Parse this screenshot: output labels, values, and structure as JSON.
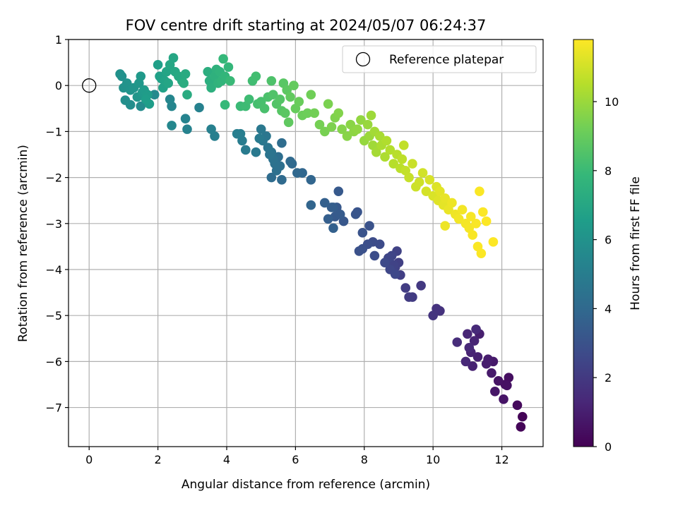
{
  "chart_data": {
    "type": "scatter",
    "title": "FOV centre drift starting at 2024/05/07 06:24:37",
    "xlabel": "Angular distance from reference (arcmin)",
    "ylabel": "Rotation from reference (arcmin)",
    "xlim": [
      -0.6,
      13.2
    ],
    "ylim": [
      -7.85,
      1.0
    ],
    "xticks": [
      0,
      2,
      4,
      6,
      8,
      10,
      12
    ],
    "yticks": [
      1,
      0,
      -1,
      -2,
      -3,
      -4,
      -5,
      -6,
      -7
    ],
    "grid": true,
    "legend": {
      "placement": "top-right",
      "entries": [
        "Reference platepar"
      ]
    },
    "reference_point": {
      "x": 0,
      "y": 0,
      "marker": "hollow-circle"
    },
    "colorbar": {
      "label": "Hours from first FF file",
      "colormap": "viridis",
      "range": [
        0,
        11.8
      ],
      "ticks": [
        0,
        2,
        4,
        6,
        8,
        10
      ]
    },
    "colormap_stops": [
      "#440154",
      "#482878",
      "#3e4989",
      "#31688e",
      "#26828e",
      "#1f9e89",
      "#35b779",
      "#6ece58",
      "#b5de2b",
      "#fde725"
    ],
    "series": [
      {
        "description_color": "colour = hours from first FF file",
        "points": [
          [
            12.6,
            -7.2,
            0.1
          ],
          [
            12.55,
            -7.42,
            0.15
          ],
          [
            12.45,
            -6.95,
            0.3
          ],
          [
            12.2,
            -6.35,
            0.45
          ],
          [
            12.1,
            -6.5,
            0.5
          ],
          [
            12.15,
            -6.52,
            0.55
          ],
          [
            11.9,
            -6.42,
            0.6
          ],
          [
            12.05,
            -6.82,
            0.65
          ],
          [
            11.8,
            -6.65,
            0.7
          ],
          [
            11.75,
            -6.0,
            0.8
          ],
          [
            11.7,
            -6.25,
            0.85
          ],
          [
            11.6,
            -5.95,
            0.9
          ],
          [
            11.55,
            -6.05,
            0.95
          ],
          [
            11.35,
            -5.4,
            1.0
          ],
          [
            11.3,
            -5.9,
            1.05
          ],
          [
            11.15,
            -6.1,
            1.1
          ],
          [
            11.1,
            -5.8,
            1.15
          ],
          [
            11.2,
            -5.55,
            1.2
          ],
          [
            11.0,
            -5.4,
            1.25
          ],
          [
            10.95,
            -6.0,
            1.3
          ],
          [
            11.05,
            -5.7,
            1.35
          ],
          [
            11.25,
            -5.3,
            1.4
          ],
          [
            10.7,
            -5.58,
            1.5
          ],
          [
            10.2,
            -4.9,
            1.7
          ],
          [
            10.1,
            -4.85,
            1.75
          ],
          [
            10.0,
            -5.0,
            1.8
          ],
          [
            9.65,
            -4.35,
            2.0
          ],
          [
            9.4,
            -4.6,
            2.05
          ],
          [
            9.3,
            -4.6,
            2.1
          ],
          [
            9.2,
            -4.4,
            2.15
          ],
          [
            9.05,
            -4.12,
            2.2
          ],
          [
            9.0,
            -3.85,
            2.25
          ],
          [
            8.9,
            -3.95,
            2.3
          ],
          [
            8.95,
            -3.6,
            2.35
          ],
          [
            8.85,
            -3.9,
            2.4
          ],
          [
            8.8,
            -3.7,
            2.45
          ],
          [
            8.7,
            -3.75,
            2.5
          ],
          [
            8.75,
            -4.0,
            2.55
          ],
          [
            8.9,
            -4.1,
            2.6
          ],
          [
            8.6,
            -3.85,
            2.65
          ],
          [
            8.45,
            -3.45,
            2.7
          ],
          [
            8.25,
            -3.4,
            2.75
          ],
          [
            8.3,
            -3.7,
            2.8
          ],
          [
            8.1,
            -3.45,
            2.85
          ],
          [
            7.95,
            -3.55,
            2.9
          ],
          [
            7.85,
            -3.6,
            2.95
          ],
          [
            8.15,
            -3.05,
            3.0
          ],
          [
            7.95,
            -3.2,
            3.05
          ],
          [
            7.8,
            -2.75,
            3.1
          ],
          [
            7.75,
            -2.8,
            3.15
          ],
          [
            7.4,
            -2.95,
            3.2
          ],
          [
            7.2,
            -2.65,
            3.25
          ],
          [
            7.25,
            -2.3,
            3.3
          ],
          [
            7.15,
            -2.85,
            3.35
          ],
          [
            7.3,
            -2.8,
            3.4
          ],
          [
            7.1,
            -2.65,
            3.45
          ],
          [
            7.05,
            -2.65,
            3.5
          ],
          [
            6.95,
            -2.9,
            3.55
          ],
          [
            6.85,
            -2.55,
            3.6
          ],
          [
            7.1,
            -3.1,
            3.65
          ],
          [
            6.45,
            -2.6,
            3.8
          ],
          [
            6.45,
            -2.05,
            3.85
          ],
          [
            6.2,
            -1.9,
            3.9
          ],
          [
            6.05,
            -1.9,
            3.95
          ],
          [
            5.9,
            -1.7,
            4.0
          ],
          [
            5.85,
            -1.65,
            4.05
          ],
          [
            5.6,
            -2.05,
            4.1
          ],
          [
            5.3,
            -2.0,
            4.15
          ],
          [
            5.6,
            -1.25,
            4.2
          ],
          [
            5.5,
            -1.55,
            4.25
          ],
          [
            5.55,
            -1.75,
            4.3
          ],
          [
            5.45,
            -1.85,
            4.35
          ],
          [
            5.4,
            -1.7,
            4.4
          ],
          [
            5.35,
            -1.6,
            4.45
          ],
          [
            5.3,
            -1.45,
            4.5
          ],
          [
            5.25,
            -1.5,
            4.55
          ],
          [
            5.2,
            -1.35,
            4.6
          ],
          [
            5.15,
            -1.1,
            4.65
          ],
          [
            5.05,
            -1.2,
            4.7
          ],
          [
            5.0,
            -0.95,
            4.75
          ],
          [
            4.85,
            -1.45,
            4.8
          ],
          [
            4.95,
            -1.15,
            4.85
          ],
          [
            4.55,
            -1.4,
            4.9
          ],
          [
            4.45,
            -1.2,
            4.95
          ],
          [
            4.4,
            -1.05,
            5.0
          ],
          [
            4.3,
            -1.05,
            5.05
          ],
          [
            3.65,
            -1.1,
            5.1
          ],
          [
            3.55,
            -0.95,
            5.15
          ],
          [
            3.2,
            -0.48,
            5.2
          ],
          [
            2.85,
            -0.95,
            5.25
          ],
          [
            2.8,
            -0.72,
            5.3
          ],
          [
            2.4,
            -0.45,
            5.4
          ],
          [
            2.35,
            -0.3,
            5.45
          ],
          [
            2.4,
            -0.87,
            5.5
          ],
          [
            1.9,
            -0.2,
            5.6
          ],
          [
            1.5,
            -0.45,
            5.7
          ],
          [
            1.2,
            -0.42,
            5.8
          ],
          [
            1.05,
            -0.32,
            5.85
          ],
          [
            0.95,
            0.2,
            5.9
          ],
          [
            0.9,
            0.25,
            5.95
          ],
          [
            1.0,
            -0.05,
            6.0
          ],
          [
            1.1,
            0.05,
            6.05
          ],
          [
            1.2,
            -0.1,
            6.1
          ],
          [
            1.3,
            -0.05,
            6.15
          ],
          [
            1.4,
            -0.25,
            6.2
          ],
          [
            1.45,
            0.05,
            6.25
          ],
          [
            1.5,
            0.2,
            6.3
          ],
          [
            1.55,
            -0.15,
            6.35
          ],
          [
            1.6,
            -0.1,
            6.4
          ],
          [
            1.7,
            -0.2,
            6.45
          ],
          [
            1.75,
            -0.4,
            6.5
          ],
          [
            1.65,
            -0.3,
            6.55
          ],
          [
            2.0,
            0.45,
            6.6
          ],
          [
            2.05,
            0.2,
            6.65
          ],
          [
            2.1,
            0.15,
            6.7
          ],
          [
            2.15,
            -0.05,
            6.75
          ],
          [
            2.2,
            0.1,
            6.8
          ],
          [
            2.25,
            0.3,
            6.85
          ],
          [
            2.3,
            0.05,
            6.9
          ],
          [
            2.35,
            0.45,
            6.95
          ],
          [
            2.45,
            0.6,
            7.0
          ],
          [
            2.5,
            0.3,
            7.05
          ],
          [
            2.6,
            0.2,
            7.1
          ],
          [
            2.7,
            0.1,
            7.15
          ],
          [
            2.8,
            0.25,
            7.2
          ],
          [
            2.85,
            -0.2,
            7.25
          ],
          [
            2.75,
            0.05,
            7.3
          ],
          [
            3.45,
            0.3,
            7.35
          ],
          [
            3.5,
            0.1,
            7.4
          ],
          [
            3.55,
            -0.05,
            7.45
          ],
          [
            3.65,
            0.2,
            7.5
          ],
          [
            3.7,
            0.35,
            7.55
          ],
          [
            3.75,
            0.05,
            7.6
          ],
          [
            3.8,
            0.3,
            7.65
          ],
          [
            3.85,
            0.1,
            7.7
          ],
          [
            3.95,
            0.2,
            7.75
          ],
          [
            4.05,
            0.4,
            7.8
          ],
          [
            3.9,
            0.58,
            7.85
          ],
          [
            3.95,
            -0.42,
            7.9
          ],
          [
            4.1,
            0.1,
            7.95
          ],
          [
            4.4,
            -0.45,
            8.0
          ],
          [
            4.55,
            -0.45,
            8.05
          ],
          [
            4.65,
            -0.3,
            8.1
          ],
          [
            4.75,
            0.1,
            8.15
          ],
          [
            4.85,
            0.2,
            8.2
          ],
          [
            4.9,
            -0.4,
            8.25
          ],
          [
            5.0,
            -0.35,
            8.3
          ],
          [
            5.1,
            -0.5,
            8.35
          ],
          [
            5.2,
            -0.25,
            8.4
          ],
          [
            5.3,
            0.1,
            8.45
          ],
          [
            5.35,
            -0.2,
            8.5
          ],
          [
            5.45,
            -0.4,
            8.55
          ],
          [
            5.55,
            -0.3,
            8.6
          ],
          [
            5.6,
            -0.55,
            8.65
          ],
          [
            5.65,
            0.05,
            8.7
          ],
          [
            5.7,
            -0.6,
            8.75
          ],
          [
            5.75,
            -0.1,
            8.8
          ],
          [
            5.8,
            -0.8,
            8.85
          ],
          [
            5.85,
            -0.25,
            8.9
          ],
          [
            5.95,
            0.0,
            8.95
          ],
          [
            6.0,
            -0.5,
            9.0
          ],
          [
            6.1,
            -0.35,
            9.05
          ],
          [
            6.2,
            -0.65,
            9.1
          ],
          [
            6.35,
            -0.6,
            9.15
          ],
          [
            6.45,
            -0.2,
            9.2
          ],
          [
            6.55,
            -0.6,
            9.25
          ],
          [
            6.7,
            -0.85,
            9.3
          ],
          [
            6.85,
            -1.0,
            9.35
          ],
          [
            6.95,
            -0.4,
            9.4
          ],
          [
            7.05,
            -0.9,
            9.45
          ],
          [
            7.15,
            -0.7,
            9.5
          ],
          [
            7.25,
            -0.6,
            9.55
          ],
          [
            7.35,
            -0.95,
            9.6
          ],
          [
            7.5,
            -1.1,
            9.65
          ],
          [
            7.6,
            -0.85,
            9.7
          ],
          [
            7.7,
            -1.0,
            9.75
          ],
          [
            7.8,
            -0.95,
            9.8
          ],
          [
            7.9,
            -0.75,
            9.85
          ],
          [
            8.0,
            -1.2,
            9.9
          ],
          [
            8.1,
            -0.85,
            9.95
          ],
          [
            8.15,
            -1.1,
            10.0
          ],
          [
            8.2,
            -0.65,
            10.05
          ],
          [
            8.25,
            -1.3,
            10.1
          ],
          [
            8.3,
            -1.0,
            10.15
          ],
          [
            8.35,
            -1.45,
            10.2
          ],
          [
            8.45,
            -1.1,
            10.25
          ],
          [
            8.5,
            -1.3,
            10.3
          ],
          [
            8.6,
            -1.55,
            10.35
          ],
          [
            8.65,
            -1.2,
            10.4
          ],
          [
            8.75,
            -1.4,
            10.45
          ],
          [
            8.85,
            -1.7,
            10.5
          ],
          [
            8.95,
            -1.5,
            10.55
          ],
          [
            9.05,
            -1.8,
            10.6
          ],
          [
            9.1,
            -1.6,
            10.65
          ],
          [
            9.15,
            -1.3,
            10.7
          ],
          [
            9.2,
            -1.85,
            10.75
          ],
          [
            9.3,
            -2.0,
            10.8
          ],
          [
            9.4,
            -1.7,
            10.85
          ],
          [
            9.5,
            -2.2,
            10.9
          ],
          [
            9.6,
            -2.1,
            10.95
          ],
          [
            9.7,
            -1.9,
            11.0
          ],
          [
            9.8,
            -2.3,
            11.05
          ],
          [
            9.9,
            -2.05,
            11.1
          ],
          [
            10.0,
            -2.4,
            11.15
          ],
          [
            10.1,
            -2.2,
            11.2
          ],
          [
            10.15,
            -2.5,
            11.25
          ],
          [
            10.2,
            -2.3,
            11.3
          ],
          [
            10.3,
            -2.6,
            11.35
          ],
          [
            10.35,
            -2.45,
            11.4
          ],
          [
            10.45,
            -2.7,
            11.45
          ],
          [
            10.55,
            -2.55,
            11.5
          ],
          [
            10.65,
            -2.8,
            11.55
          ],
          [
            10.75,
            -2.9,
            11.6
          ],
          [
            10.85,
            -2.7,
            11.62
          ],
          [
            10.95,
            -3.0,
            11.64
          ],
          [
            11.05,
            -3.1,
            11.66
          ],
          [
            11.1,
            -2.85,
            11.68
          ],
          [
            11.15,
            -3.25,
            11.7
          ],
          [
            11.25,
            -3.0,
            11.72
          ],
          [
            11.3,
            -3.5,
            11.74
          ],
          [
            11.35,
            -2.3,
            11.75
          ],
          [
            11.4,
            -3.65,
            11.76
          ],
          [
            11.45,
            -2.75,
            11.77
          ],
          [
            11.55,
            -2.95,
            11.78
          ],
          [
            11.75,
            -3.4,
            11.79
          ],
          [
            10.35,
            -3.05,
            11.5
          ]
        ]
      }
    ]
  }
}
